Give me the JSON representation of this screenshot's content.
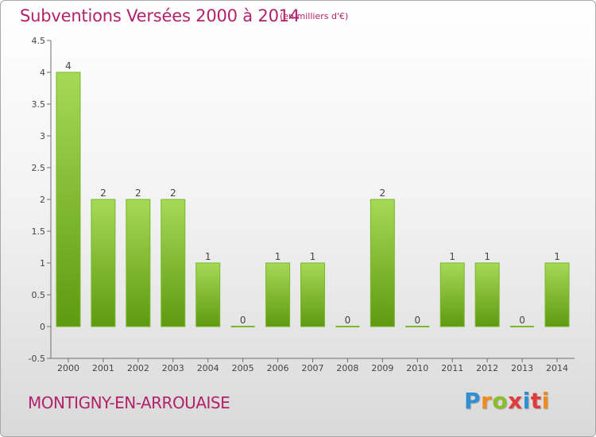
{
  "header": {
    "title": "Subventions Versées 2000 à 2014",
    "unit": "(en milliers d'€)"
  },
  "footer": {
    "commune": "MONTIGNY-EN-ARROUAISE",
    "logo_text": "Proxiti"
  },
  "colors": {
    "accent": "#b2226a",
    "bar_light": "#a6d957",
    "bar_dark": "#5e9a10"
  },
  "chart_data": {
    "type": "bar",
    "title": "Subventions Versées 2000 à 2014",
    "subtitle": "(en milliers d'€)",
    "categories": [
      "2000",
      "2001",
      "2002",
      "2003",
      "2004",
      "2005",
      "2006",
      "2007",
      "2008",
      "2009",
      "2010",
      "2011",
      "2012",
      "2013",
      "2014"
    ],
    "values": [
      4,
      2,
      2,
      2,
      1,
      0,
      1,
      1,
      0,
      2,
      0,
      1,
      1,
      0,
      1
    ],
    "yticks": [
      "4.5",
      "4",
      "3.5",
      "3",
      "2.5",
      "2",
      "1.5",
      "1",
      "0.5",
      "0",
      "-0.5"
    ],
    "ylim": [
      -0.5,
      4.5
    ],
    "grid": false,
    "legend": "none"
  }
}
